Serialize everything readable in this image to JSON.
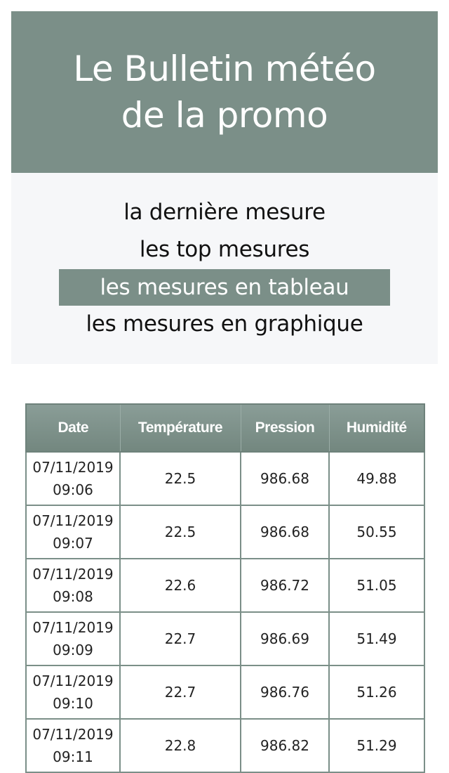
{
  "header": {
    "title": "Le Bulletin météo\nde la promo"
  },
  "nav": {
    "items": [
      {
        "label": "la dernière mesure",
        "active": false
      },
      {
        "label": "les top mesures",
        "active": false
      },
      {
        "label": "les mesures en tableau",
        "active": true
      },
      {
        "label": "les mesures en graphique",
        "active": false
      }
    ]
  },
  "table": {
    "columns": [
      "Date",
      "Température",
      "Pression",
      "Humidité"
    ],
    "rows": [
      {
        "date": "07/11/2019\n09:06",
        "temperature": "22.5",
        "pression": "986.68",
        "humidite": "49.88"
      },
      {
        "date": "07/11/2019\n09:07",
        "temperature": "22.5",
        "pression": "986.68",
        "humidite": "50.55"
      },
      {
        "date": "07/11/2019\n09:08",
        "temperature": "22.6",
        "pression": "986.72",
        "humidite": "51.05"
      },
      {
        "date": "07/11/2019\n09:09",
        "temperature": "22.7",
        "pression": "986.69",
        "humidite": "51.49"
      },
      {
        "date": "07/11/2019\n09:10",
        "temperature": "22.7",
        "pression": "986.76",
        "humidite": "51.26"
      },
      {
        "date": "07/11/2019\n09:11",
        "temperature": "22.8",
        "pression": "986.82",
        "humidite": "51.29"
      }
    ]
  },
  "colors": {
    "accent": "#7b8f88",
    "nav_background": "#f6f7f9"
  }
}
